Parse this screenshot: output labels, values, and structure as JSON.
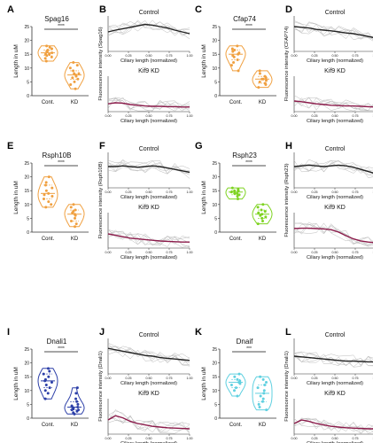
{
  "chart_data": [
    {
      "panel": "A",
      "type": "violin",
      "title": "Spag16",
      "ylabel": "Length in uM",
      "categories": [
        "Cont.",
        "KD"
      ],
      "color": "#f0a040",
      "significance": "****",
      "series": [
        {
          "name": "Cont.",
          "values": [
            12.5,
            13.5,
            14,
            14.5,
            15,
            15,
            15.5,
            16,
            16,
            16.5,
            17,
            17.5,
            18
          ]
        },
        {
          "name": "KD",
          "values": [
            2.5,
            4,
            5,
            6,
            6.5,
            7,
            7.5,
            8,
            8,
            9,
            10,
            11,
            12
          ]
        }
      ]
    },
    {
      "panel": "B",
      "type": "line",
      "title": "Control",
      "subtitle": "Kif9 KD",
      "ylabel": "Fluorescence intensity (Spag16)",
      "xlabel": "Ciliary length (normalized)",
      "xlim": [
        0,
        1
      ],
      "xticks": [
        "0.00",
        "0.25",
        "0.50",
        "0.75",
        "1.00"
      ],
      "top_color": "#222222",
      "bottom_color": "#8b1a4a",
      "top_values": [
        0.55,
        0.6,
        0.64,
        0.68,
        0.72,
        0.76,
        0.74,
        0.7,
        0.66,
        0.6,
        0.55,
        0.5
      ],
      "bottom_values": [
        0.22,
        0.25,
        0.24,
        0.2,
        0.18,
        0.16,
        0.15,
        0.15,
        0.14,
        0.14,
        0.13,
        0.13
      ]
    },
    {
      "panel": "C",
      "type": "violin",
      "title": "Cfap74",
      "ylabel": "Length in uM",
      "categories": [
        "Cont.",
        "KD"
      ],
      "color": "#f0a040",
      "significance": "****",
      "series": [
        {
          "name": "Cont.",
          "values": [
            9,
            11,
            12,
            13,
            14,
            14.5,
            15,
            15.5,
            16,
            16.5,
            17,
            18
          ]
        },
        {
          "name": "KD",
          "values": [
            3,
            4,
            4.5,
            5,
            5.5,
            6,
            6,
            6.5,
            7,
            8,
            9
          ]
        }
      ]
    },
    {
      "panel": "D",
      "type": "line",
      "title": "Control",
      "subtitle": "Kif9 KD",
      "ylabel": "Fluorescence intensity (CFAP74)",
      "xlabel": "Ciliary length (normalized)",
      "xlim": [
        0,
        1
      ],
      "xticks": [
        "0.00",
        "0.25",
        "0.50",
        "0.75",
        "1.00"
      ],
      "top_color": "#222222",
      "bottom_color": "#8b1a4a",
      "top_values": [
        0.7,
        0.68,
        0.66,
        0.62,
        0.6,
        0.58,
        0.55,
        0.52,
        0.5,
        0.46,
        0.42,
        0.38
      ],
      "bottom_values": [
        0.3,
        0.28,
        0.25,
        0.22,
        0.2,
        0.18,
        0.17,
        0.16,
        0.16,
        0.15,
        0.14,
        0.13
      ]
    },
    {
      "panel": "E",
      "type": "violin",
      "title": "Rsph10B",
      "ylabel": "Length in uM",
      "categories": [
        "Cont.",
        "KD"
      ],
      "color": "#f0a040",
      "significance": "****",
      "series": [
        {
          "name": "Cont.",
          "values": [
            9,
            10,
            11,
            12,
            13,
            13.5,
            14,
            15,
            16,
            17,
            18,
            20
          ]
        },
        {
          "name": "KD",
          "values": [
            2,
            3,
            4,
            5,
            6,
            6.5,
            7,
            7.5,
            8,
            9,
            10
          ]
        }
      ]
    },
    {
      "panel": "F",
      "type": "line",
      "title": "Control",
      "subtitle": "Kif9 KD",
      "ylabel": "Fluorescence intensity (Rsph10B)",
      "xlabel": "Ciliary length (normalized)",
      "xlim": [
        0,
        1
      ],
      "xticks": [
        "0.00",
        "0.25",
        "0.50",
        "0.75",
        "1.00"
      ],
      "top_color": "#222222",
      "bottom_color": "#8b1a4a",
      "top_values": [
        0.6,
        0.6,
        0.62,
        0.6,
        0.58,
        0.6,
        0.62,
        0.6,
        0.56,
        0.52,
        0.48,
        0.44
      ],
      "bottom_values": [
        0.4,
        0.36,
        0.32,
        0.28,
        0.26,
        0.24,
        0.22,
        0.2,
        0.19,
        0.18,
        0.17,
        0.17
      ]
    },
    {
      "panel": "G",
      "type": "violin",
      "title": "Rsph23",
      "ylabel": "Length in uM",
      "categories": [
        "Cont.",
        "KD"
      ],
      "color": "#7ed321",
      "significance": "****",
      "series": [
        {
          "name": "Cont.",
          "values": [
            12,
            13,
            13.5,
            14,
            14,
            14.5,
            15,
            15,
            15.5,
            16
          ]
        },
        {
          "name": "KD",
          "values": [
            3,
            4,
            5,
            5.5,
            6,
            6.5,
            7,
            7.5,
            8,
            9,
            10
          ]
        }
      ]
    },
    {
      "panel": "H",
      "type": "line",
      "title": "Control",
      "subtitle": "Kif9 KD",
      "ylabel": "Fluorescence intensity (Rsph23)",
      "xlabel": "Ciliary length (normalized)",
      "xlim": [
        0,
        1
      ],
      "xticks": [
        "0.00",
        "0.25",
        "0.50",
        "0.75",
        "1.00"
      ],
      "top_color": "#222222",
      "bottom_color": "#8b1a4a",
      "top_values": [
        0.6,
        0.62,
        0.64,
        0.62,
        0.6,
        0.62,
        0.64,
        0.62,
        0.58,
        0.52,
        0.46,
        0.4
      ],
      "bottom_values": [
        0.55,
        0.56,
        0.56,
        0.55,
        0.54,
        0.52,
        0.45,
        0.35,
        0.26,
        0.2,
        0.17,
        0.15
      ]
    },
    {
      "panel": "I",
      "type": "violin",
      "title": "Dnali1",
      "ylabel": "Length in uM",
      "categories": [
        "Cont.",
        "KD"
      ],
      "color": "#2c3fa8",
      "significance": "****",
      "series": [
        {
          "name": "Cont.",
          "values": [
            7,
            9,
            10,
            11,
            12,
            13,
            13.5,
            14,
            15,
            16,
            17,
            18
          ]
        },
        {
          "name": "KD",
          "values": [
            1.5,
            2,
            2.5,
            3,
            3,
            3.5,
            4,
            4,
            4.5,
            5,
            6,
            7,
            9,
            11
          ]
        }
      ]
    },
    {
      "panel": "J",
      "type": "line",
      "title": "Control",
      "subtitle": "Kif9 KD",
      "ylabel": "Fluorescence intensity (Dnali1)",
      "xlabel": "Ciliary length (normalized)",
      "xlim": [
        0,
        1
      ],
      "xticks": [
        "0.00",
        "0.25",
        "0.50",
        "0.75",
        "1.00"
      ],
      "top_color": "#222222",
      "bottom_color": "#8b1a4a",
      "top_values": [
        0.72,
        0.68,
        0.64,
        0.6,
        0.56,
        0.52,
        0.5,
        0.46,
        0.44,
        0.42,
        0.4,
        0.38
      ],
      "bottom_values": [
        0.4,
        0.52,
        0.46,
        0.36,
        0.3,
        0.26,
        0.22,
        0.2,
        0.18,
        0.17,
        0.16,
        0.15
      ]
    },
    {
      "panel": "K",
      "type": "violin",
      "title": "Dnaif",
      "ylabel": "Length in uM",
      "categories": [
        "Cont.",
        "KD"
      ],
      "color": "#5fd0e0",
      "significance": "***",
      "series": [
        {
          "name": "Cont.",
          "values": [
            8,
            10,
            11,
            12,
            12.5,
            13,
            13.5,
            14,
            15,
            16
          ]
        },
        {
          "name": "KD",
          "values": [
            3,
            4,
            5,
            6,
            7,
            8,
            9,
            10,
            11,
            12,
            13,
            14,
            15
          ]
        }
      ]
    },
    {
      "panel": "L",
      "type": "line",
      "title": "Control",
      "subtitle": "Kif9 KD",
      "ylabel": "Fluorescence intensity (Dnali1)",
      "xlabel": "Ciliary length (normalized)",
      "xlim": [
        0,
        1
      ],
      "xticks": [
        "0.00",
        "0.25",
        "0.50",
        "0.75",
        "1.00"
      ],
      "top_color": "#222222",
      "bottom_color": "#8b1a4a",
      "top_values": [
        0.5,
        0.48,
        0.46,
        0.44,
        0.42,
        0.4,
        0.38,
        0.36,
        0.36,
        0.35,
        0.34,
        0.34
      ],
      "bottom_values": [
        0.3,
        0.4,
        0.36,
        0.3,
        0.26,
        0.22,
        0.2,
        0.18,
        0.17,
        0.16,
        0.15,
        0.15
      ]
    }
  ],
  "violin_ylim": [
    0,
    25
  ],
  "violin_yticks": [
    "0",
    "5",
    "10",
    "15",
    "20",
    "25"
  ]
}
